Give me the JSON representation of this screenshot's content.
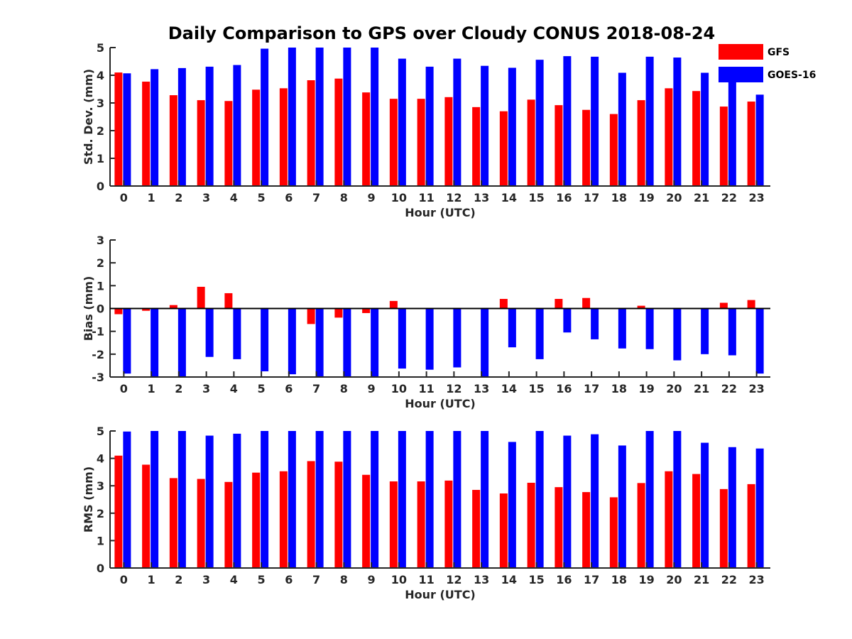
{
  "title": "Daily Comparison to GPS over Cloudy CONUS 2018-08-24",
  "legend": {
    "placement": "top-right",
    "entries": [
      {
        "name": "GFS",
        "color": "#ff0000"
      },
      {
        "name": "GOES-16",
        "color": "#0000ff"
      }
    ]
  },
  "chart_data": [
    {
      "type": "bar",
      "categories": [
        "0",
        "1",
        "2",
        "3",
        "4",
        "5",
        "6",
        "7",
        "8",
        "9",
        "10",
        "11",
        "12",
        "13",
        "14",
        "15",
        "16",
        "17",
        "18",
        "19",
        "20",
        "21",
        "22",
        "23"
      ],
      "xlabel": "Hour (UTC)",
      "ylabel": "Std. Dev. (mm)",
      "ylim": [
        0,
        5
      ],
      "yticks": [
        0,
        1,
        2,
        3,
        4,
        5
      ],
      "series": [
        {
          "name": "GFS",
          "color": "#ff0000",
          "values": [
            4.1,
            3.77,
            3.28,
            3.1,
            3.07,
            3.48,
            3.53,
            3.82,
            3.88,
            3.38,
            3.15,
            3.15,
            3.21,
            2.85,
            2.7,
            3.12,
            2.92,
            2.75,
            2.6,
            3.1,
            3.53,
            3.43,
            2.87,
            3.05
          ]
        },
        {
          "name": "GOES-16",
          "color": "#0000ff",
          "values": [
            4.07,
            4.22,
            4.26,
            4.31,
            4.37,
            4.96,
            5.0,
            5.0,
            5.0,
            5.0,
            4.6,
            4.31,
            4.6,
            4.34,
            4.27,
            4.56,
            4.69,
            4.67,
            4.09,
            4.67,
            4.64,
            4.09,
            3.87,
            3.3
          ]
        }
      ]
    },
    {
      "type": "bar",
      "categories": [
        "0",
        "1",
        "2",
        "3",
        "4",
        "5",
        "6",
        "7",
        "8",
        "9",
        "10",
        "11",
        "12",
        "13",
        "14",
        "15",
        "16",
        "17",
        "18",
        "19",
        "20",
        "21",
        "22",
        "23"
      ],
      "xlabel": "Hour (UTC)",
      "ylabel": "Bias (mm)",
      "ylim": [
        -3,
        3
      ],
      "yticks": [
        -3,
        -2,
        -1,
        0,
        1,
        2,
        3
      ],
      "series": [
        {
          "name": "GFS",
          "color": "#ff0000",
          "values": [
            -0.25,
            -0.1,
            0.15,
            0.95,
            0.67,
            0,
            0,
            -0.68,
            -0.4,
            -0.2,
            0.33,
            -0.03,
            0.02,
            0.02,
            0.42,
            0,
            0.42,
            0.46,
            0.02,
            0.12,
            0,
            0,
            0.25,
            0.37
          ]
        },
        {
          "name": "GOES-16",
          "color": "#0000ff",
          "values": [
            -2.85,
            -3.0,
            -3.0,
            -2.12,
            -2.22,
            -2.75,
            -2.88,
            -3.0,
            -3.0,
            -3.0,
            -2.63,
            -2.68,
            -2.58,
            -3.0,
            -1.7,
            -2.22,
            -1.05,
            -1.35,
            -1.75,
            -1.78,
            -2.27,
            -2.0,
            -2.05,
            -2.85
          ]
        }
      ]
    },
    {
      "type": "bar",
      "categories": [
        "0",
        "1",
        "2",
        "3",
        "4",
        "5",
        "6",
        "7",
        "8",
        "9",
        "10",
        "11",
        "12",
        "13",
        "14",
        "15",
        "16",
        "17",
        "18",
        "19",
        "20",
        "21",
        "22",
        "23"
      ],
      "xlabel": "Hour (UTC)",
      "ylabel": "RMS (mm)",
      "ylim": [
        0,
        5
      ],
      "yticks": [
        0,
        1,
        2,
        3,
        4,
        5
      ],
      "series": [
        {
          "name": "GFS",
          "color": "#ff0000",
          "values": [
            4.1,
            3.77,
            3.28,
            3.25,
            3.14,
            3.48,
            3.53,
            3.9,
            3.88,
            3.4,
            3.16,
            3.16,
            3.19,
            2.85,
            2.72,
            3.11,
            2.95,
            2.77,
            2.58,
            3.1,
            3.53,
            3.43,
            2.88,
            3.06
          ]
        },
        {
          "name": "GOES-16",
          "color": "#0000ff",
          "values": [
            4.98,
            5.0,
            5.0,
            4.83,
            4.9,
            5.0,
            5.0,
            5.0,
            5.0,
            5.0,
            5.0,
            5.0,
            5.0,
            5.0,
            4.6,
            5.0,
            4.83,
            4.88,
            4.47,
            5.0,
            5.0,
            4.57,
            4.41,
            4.36
          ]
        }
      ]
    }
  ]
}
